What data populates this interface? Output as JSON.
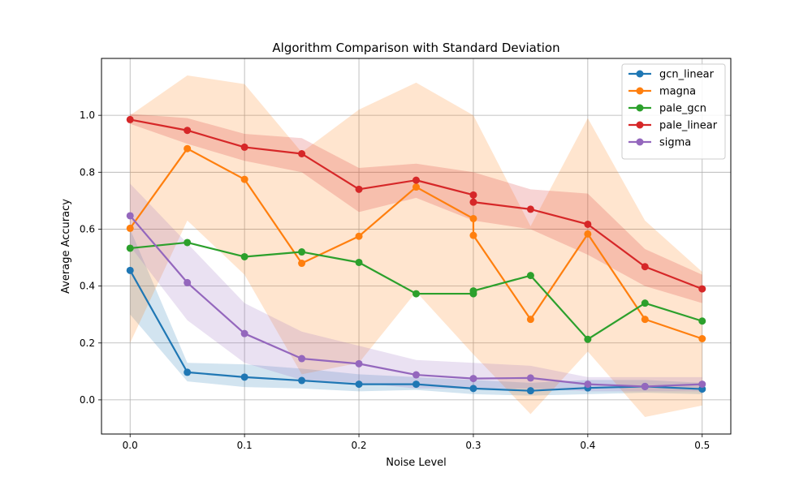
{
  "chart_data": {
    "type": "line",
    "title": "Algorithm Comparison with Standard Deviation",
    "xlabel": "Noise Level",
    "ylabel": "Average Accuracy",
    "xlim": [
      -0.025,
      0.525
    ],
    "ylim": [
      -0.12,
      1.2
    ],
    "xticks": [
      0.0,
      0.1,
      0.2,
      0.3,
      0.4,
      0.5
    ],
    "xtick_labels": [
      "0.0",
      "0.1",
      "0.2",
      "0.3",
      "0.4",
      "0.5"
    ],
    "yticks": [
      0.0,
      0.2,
      0.4,
      0.6,
      0.8,
      1.0
    ],
    "ytick_labels": [
      "0.0",
      "0.2",
      "0.4",
      "0.6",
      "0.8",
      "1.0"
    ],
    "grid": true,
    "legend_position": "top-right",
    "x": [
      0.0,
      0.05,
      0.1,
      0.15,
      0.2,
      0.25,
      0.3,
      0.35,
      0.4,
      0.45,
      0.5
    ],
    "series": [
      {
        "name": "gcn_linear",
        "color": "#1f77b4",
        "points": [
          [
            0.0,
            0.455
          ],
          [
            0.05,
            0.097
          ],
          [
            0.1,
            0.08
          ],
          [
            0.15,
            0.068
          ],
          [
            0.2,
            0.055
          ],
          [
            0.25,
            0.055
          ],
          [
            0.3,
            0.04
          ],
          [
            0.35,
            0.032
          ],
          [
            0.4,
            0.042
          ],
          [
            0.45,
            0.047
          ],
          [
            0.5,
            0.038
          ]
        ],
        "lower": [
          0.3,
          0.065,
          0.045,
          0.04,
          0.03,
          0.035,
          0.02,
          0.015,
          0.02,
          0.025,
          0.02
        ],
        "upper": [
          0.6,
          0.13,
          0.125,
          0.11,
          0.09,
          0.08,
          0.07,
          0.06,
          0.07,
          0.07,
          0.06
        ]
      },
      {
        "name": "magna",
        "color": "#ff7f0e",
        "points": [
          [
            0.0,
            0.603
          ],
          [
            0.05,
            0.883
          ],
          [
            0.1,
            0.775
          ],
          [
            0.15,
            0.48
          ],
          [
            0.2,
            0.575
          ],
          [
            0.25,
            0.748
          ],
          [
            0.3,
            0.637
          ],
          [
            0.3,
            0.578
          ],
          [
            0.35,
            0.283
          ],
          [
            0.4,
            0.583
          ],
          [
            0.45,
            0.283
          ],
          [
            0.5,
            0.215
          ]
        ],
        "band_x": [
          0.0,
          0.05,
          0.1,
          0.15,
          0.2,
          0.25,
          0.3,
          0.35,
          0.4,
          0.45,
          0.5
        ],
        "lower": [
          0.2,
          0.63,
          0.44,
          0.09,
          0.13,
          0.38,
          0.16,
          -0.05,
          0.17,
          -0.06,
          -0.02
        ],
        "upper": [
          1.0,
          1.14,
          1.11,
          0.87,
          1.02,
          1.115,
          1.0,
          0.61,
          0.99,
          0.63,
          0.45
        ]
      },
      {
        "name": "pale_gcn",
        "color": "#2ca02c",
        "points": [
          [
            0.0,
            0.533
          ],
          [
            0.05,
            0.553
          ],
          [
            0.1,
            0.503
          ],
          [
            0.15,
            0.52
          ],
          [
            0.2,
            0.483
          ],
          [
            0.25,
            0.373
          ],
          [
            0.3,
            0.373
          ],
          [
            0.3,
            0.383
          ],
          [
            0.35,
            0.437
          ],
          [
            0.4,
            0.213
          ],
          [
            0.45,
            0.34
          ],
          [
            0.5,
            0.277
          ]
        ]
      },
      {
        "name": "pale_linear",
        "color": "#d62728",
        "points": [
          [
            0.0,
            0.985
          ],
          [
            0.05,
            0.947
          ],
          [
            0.1,
            0.888
          ],
          [
            0.15,
            0.865
          ],
          [
            0.2,
            0.74
          ],
          [
            0.25,
            0.772
          ],
          [
            0.3,
            0.72
          ],
          [
            0.3,
            0.695
          ],
          [
            0.35,
            0.67
          ],
          [
            0.4,
            0.617
          ],
          [
            0.45,
            0.468
          ],
          [
            0.5,
            0.39
          ]
        ],
        "band_x": [
          0.0,
          0.05,
          0.1,
          0.15,
          0.2,
          0.25,
          0.3,
          0.35,
          0.4,
          0.45,
          0.5
        ],
        "lower": [
          0.97,
          0.9,
          0.84,
          0.8,
          0.66,
          0.71,
          0.63,
          0.6,
          0.51,
          0.4,
          0.34
        ],
        "upper": [
          1.005,
          0.99,
          0.935,
          0.92,
          0.815,
          0.83,
          0.8,
          0.74,
          0.725,
          0.53,
          0.44
        ]
      },
      {
        "name": "sigma",
        "color": "#9467bd",
        "points": [
          [
            0.0,
            0.647
          ],
          [
            0.05,
            0.412
          ],
          [
            0.1,
            0.233
          ],
          [
            0.15,
            0.145
          ],
          [
            0.2,
            0.127
          ],
          [
            0.25,
            0.088
          ],
          [
            0.3,
            0.075
          ],
          [
            0.35,
            0.077
          ],
          [
            0.4,
            0.055
          ],
          [
            0.45,
            0.047
          ],
          [
            0.5,
            0.055
          ]
        ],
        "lower": [
          0.54,
          0.28,
          0.13,
          0.07,
          0.06,
          0.04,
          0.04,
          0.04,
          0.03,
          0.03,
          0.03
        ],
        "upper": [
          0.76,
          0.55,
          0.34,
          0.24,
          0.19,
          0.14,
          0.13,
          0.12,
          0.08,
          0.08,
          0.08
        ]
      }
    ]
  }
}
